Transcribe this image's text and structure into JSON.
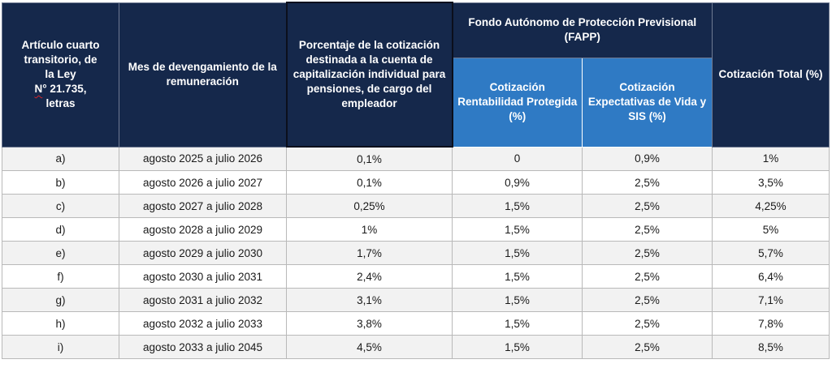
{
  "header": {
    "col_article_line1": "Artículo cuarto",
    "col_article_line2": "transitorio, de",
    "col_article_line3": "la Ley",
    "col_article_prefix": "N",
    "col_article_law": "° 21.735,",
    "col_article_line5": "letras",
    "col_month": "Mes de devengamiento de la remuneración",
    "col_percent": "Porcentaje de la cotización destinada a la cuenta de capitalización individual para pensiones, de cargo del empleador",
    "col_fapp": "Fondo Autónomo de Protección Previsional (FAPP)",
    "col_fapp_rent": "Cotización Rentabilidad Protegida (%)",
    "col_fapp_exp": "Cotización Expectativas de Vida y SIS (%)",
    "col_total": "Cotización Total (%)"
  },
  "rows": [
    {
      "letter": "a)",
      "month": "agosto 2025 a julio 2026",
      "percent": "0,1%",
      "rent": "0",
      "exp": "0,9%",
      "total": "1%"
    },
    {
      "letter": "b)",
      "month": "agosto 2026 a julio 2027",
      "percent": "0,1%",
      "rent": "0,9%",
      "exp": "2,5%",
      "total": "3,5%"
    },
    {
      "letter": "c)",
      "month": "agosto 2027 a julio 2028",
      "percent": "0,25%",
      "rent": "1,5%",
      "exp": "2,5%",
      "total": "4,25%"
    },
    {
      "letter": "d)",
      "month": "agosto 2028 a julio 2029",
      "percent": "1%",
      "rent": "1,5%",
      "exp": "2,5%",
      "total": "5%"
    },
    {
      "letter": "e)",
      "month": "agosto 2029 a julio 2030",
      "percent": "1,7%",
      "rent": "1,5%",
      "exp": "2,5%",
      "total": "5,7%"
    },
    {
      "letter": "f)",
      "month": "agosto 2030 a julio 2031",
      "percent": "2,4%",
      "rent": "1,5%",
      "exp": "2,5%",
      "total": "6,4%"
    },
    {
      "letter": "g)",
      "month": "agosto 2031 a julio 2032",
      "percent": "3,1%",
      "rent": "1,5%",
      "exp": "2,5%",
      "total": "7,1%"
    },
    {
      "letter": "h)",
      "month": "agosto 2032 a julio 2033",
      "percent": "3,8%",
      "rent": "1,5%",
      "exp": "2,5%",
      "total": "7,8%"
    },
    {
      "letter": "i)",
      "month": "agosto 2033 a julio 2045",
      "percent": "4,5%",
      "rent": "1,5%",
      "exp": "2,5%",
      "total": "8,5%"
    }
  ],
  "colors": {
    "header_dark": "#15284b",
    "header_blue": "#2f7ac4",
    "row_shade": "#f2f2f2",
    "spellcheck_underline": "#d2232a"
  }
}
